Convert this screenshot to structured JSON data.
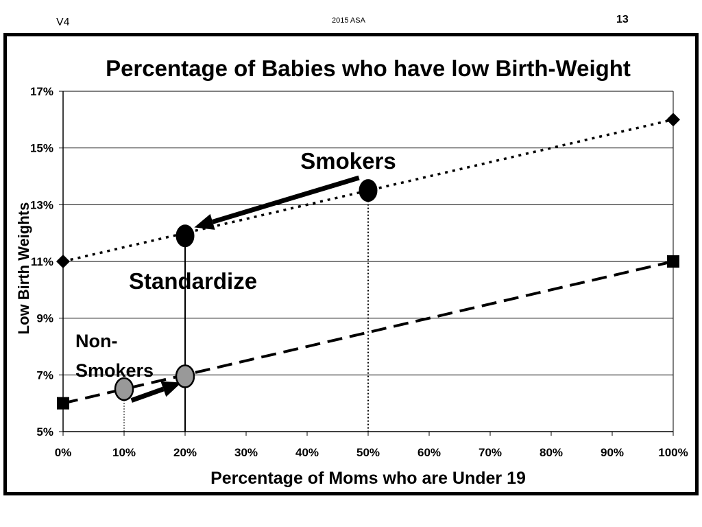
{
  "header": {
    "version": "V4",
    "event": "2015 ASA",
    "page_number": "13"
  },
  "chart_data": {
    "type": "line",
    "title": "Percentage of Babies who have low Birth-Weight",
    "xlabel": "Percentage of Moms who are Under 19",
    "ylabel": "Low Birth Weights",
    "xlim": [
      0,
      100
    ],
    "ylim": [
      5,
      17
    ],
    "x_ticks": [
      "0%",
      "10%",
      "20%",
      "30%",
      "40%",
      "50%",
      "60%",
      "70%",
      "80%",
      "90%",
      "100%"
    ],
    "y_ticks": [
      "5%",
      "7%",
      "9%",
      "11%",
      "13%",
      "15%",
      "17%"
    ],
    "grid": true,
    "series": [
      {
        "name": "Smokers",
        "line_style": "dotted",
        "marker": "diamond",
        "x": [
          0,
          100
        ],
        "y": [
          11,
          16
        ]
      },
      {
        "name": "Non-Smokers",
        "line_style": "dashed",
        "marker": "square",
        "x": [
          0,
          100
        ],
        "y": [
          6,
          11
        ]
      }
    ],
    "highlight_points": [
      {
        "name": "smokers-actual",
        "x": 50,
        "y": 13.5,
        "color": "#000000"
      },
      {
        "name": "smokers-standardized",
        "x": 20,
        "y": 11.9,
        "color": "#000000"
      },
      {
        "name": "nonsmokers-actual",
        "x": 10,
        "y": 6.5,
        "color": "#999999"
      },
      {
        "name": "nonsmokers-standardized",
        "x": 20,
        "y": 6.95,
        "color": "#999999"
      }
    ],
    "annotations": {
      "smokers": "Smokers",
      "standardize": "Standardize",
      "non_smokers_line1": "Non-",
      "non_smokers_line2": "Smokers"
    },
    "colors": {
      "axis": "#000000",
      "grid": "#000000",
      "gray_point": "#999999"
    }
  }
}
